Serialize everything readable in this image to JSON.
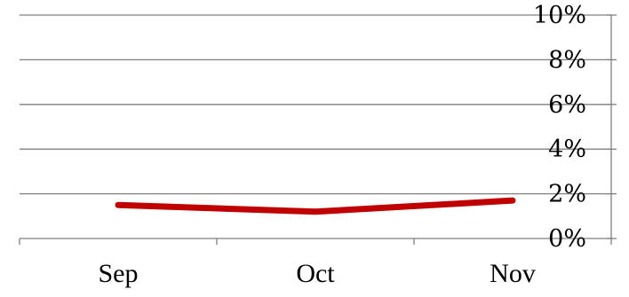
{
  "chart_data": {
    "type": "line",
    "categories": [
      "Sep",
      "Oct",
      "Nov"
    ],
    "series": [
      {
        "values": [
          1.5,
          1.2,
          1.7
        ],
        "color": "#c00000"
      }
    ],
    "y_tick_labels": [
      "0%",
      "2%",
      "4%",
      "6%",
      "8%",
      "10%"
    ],
    "ylim": [
      0,
      10
    ],
    "y_axis_position": "right",
    "grid": true,
    "legend": "none"
  }
}
